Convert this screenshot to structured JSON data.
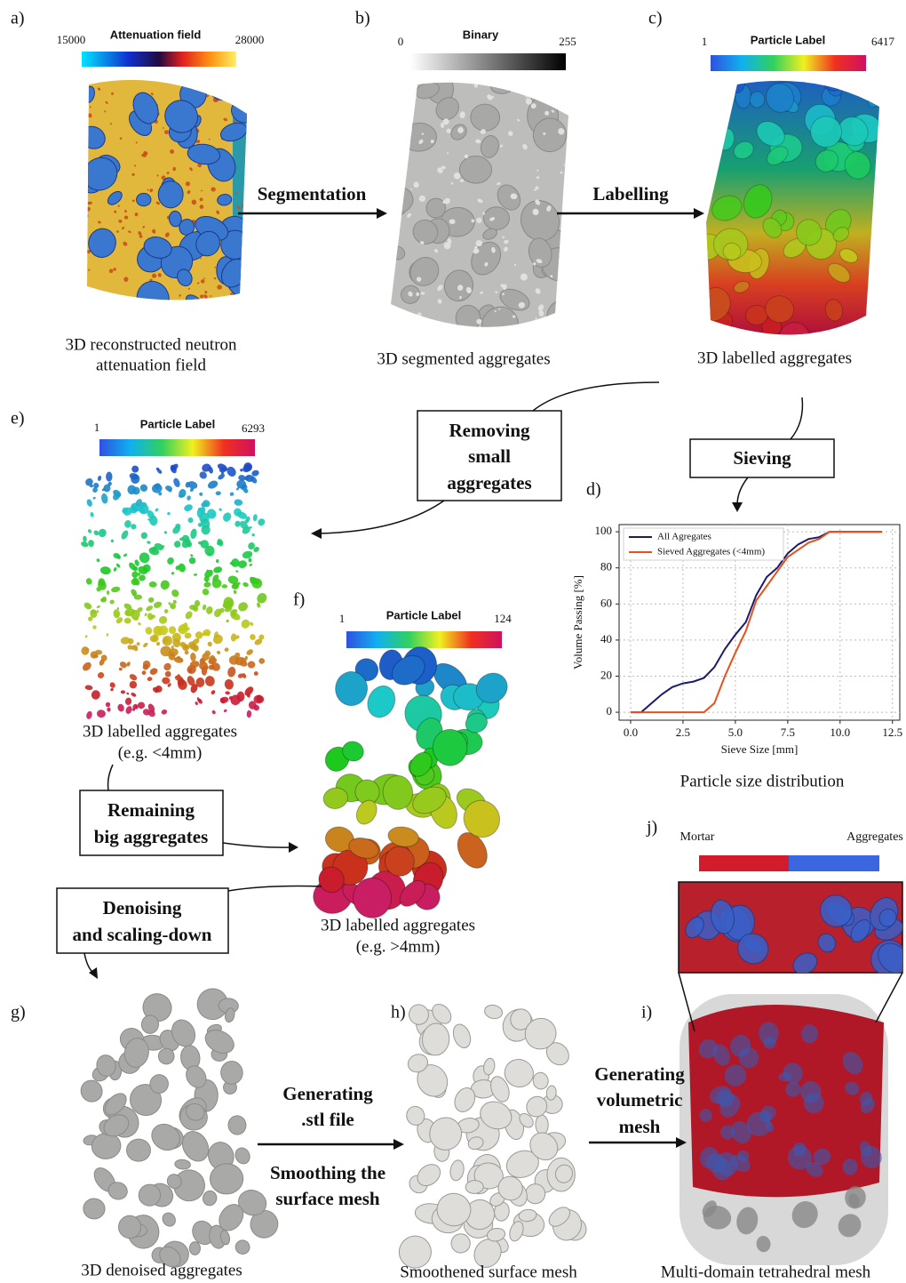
{
  "panels": [
    {
      "letter": "a)",
      "colorbar": {
        "title": "Attenuation field",
        "min": 15000,
        "max": 28000
      },
      "caption": [
        "3D reconstructed neutron",
        "attenuation field"
      ]
    },
    {
      "letter": "b)",
      "colorbar": {
        "title": "Binary",
        "min": 0,
        "max": 255
      },
      "caption": [
        "3D segmented aggregates"
      ]
    },
    {
      "letter": "c)",
      "colorbar": {
        "title": "Particle Label",
        "min": 1,
        "max": 6417
      },
      "caption": [
        "3D labelled aggregates"
      ]
    },
    {
      "letter": "d)",
      "caption": [
        "Particle size distribution"
      ]
    },
    {
      "letter": "e)",
      "colorbar": {
        "title": "Particle Label",
        "min": 1,
        "max": 6293
      },
      "caption": [
        "3D labelled aggregates",
        "(e.g. <4mm)"
      ]
    },
    {
      "letter": "f)",
      "colorbar": {
        "title": "Particle Label",
        "min": 1,
        "max": 124
      },
      "caption": [
        "3D labelled aggregates",
        "(e.g. >4mm)"
      ]
    },
    {
      "letter": "g)",
      "caption": [
        "3D denoised aggregates"
      ]
    },
    {
      "letter": "h)",
      "caption": [
        "Smoothened surface mesh"
      ]
    },
    {
      "letter": "i)",
      "caption": [
        "Multi-domain tetrahedral mesh"
      ]
    },
    {
      "letter": "j)",
      "legend": [
        "Mortar",
        "Aggregates"
      ]
    }
  ],
  "steps": [
    [
      "Segmentation"
    ],
    [
      "Labelling"
    ],
    [
      "Removing",
      "small",
      "aggregates"
    ],
    [
      "Sieving"
    ],
    [
      "Remaining",
      "big aggregates"
    ],
    [
      "Denoising",
      "and scaling-down"
    ],
    [
      "Generating",
      ".stl file",
      "Smoothing the",
      "surface mesh"
    ],
    [
      "Generating",
      "volumetric",
      "mesh"
    ]
  ],
  "chart_data": {
    "type": "line",
    "x_label": "Sieve Size [mm]",
    "y_label": "Volume Passing [%]",
    "x": [
      0,
      0.5,
      1,
      1.5,
      2,
      2.5,
      3,
      3.5,
      4,
      4.5,
      5,
      5.5,
      6,
      6.5,
      7,
      7.5,
      8,
      8.5,
      9,
      9.5,
      10,
      11,
      12
    ],
    "series": [
      {
        "name": "All Agregates",
        "color": "#1a1a6e",
        "values": [
          0,
          0,
          5,
          10,
          14,
          16,
          17,
          19,
          25,
          35,
          43,
          50,
          65,
          75,
          80,
          88,
          93,
          96,
          97,
          100,
          100,
          100,
          100
        ]
      },
      {
        "name": "Sieved Aggregates (<4mm)",
        "color": "#e8501e",
        "values": [
          0,
          0,
          0,
          0,
          0,
          0,
          0,
          0,
          5,
          20,
          33,
          45,
          62,
          70,
          78,
          86,
          90,
          94,
          96,
          100,
          100,
          100,
          100
        ]
      }
    ],
    "xlim": [
      -0.55,
      12.85
    ],
    "ylim": [
      -4.4,
      104
    ],
    "xticks": [
      {
        "value": 0,
        "label": "0.0"
      },
      2.5,
      {
        "value": 5,
        "label": "5.0"
      },
      7.5,
      {
        "value": 10,
        "label": "10.0"
      },
      12.5
    ],
    "yticks": [
      0,
      20,
      40,
      60,
      80,
      100
    ],
    "grid": true,
    "legend": "upper left"
  }
}
